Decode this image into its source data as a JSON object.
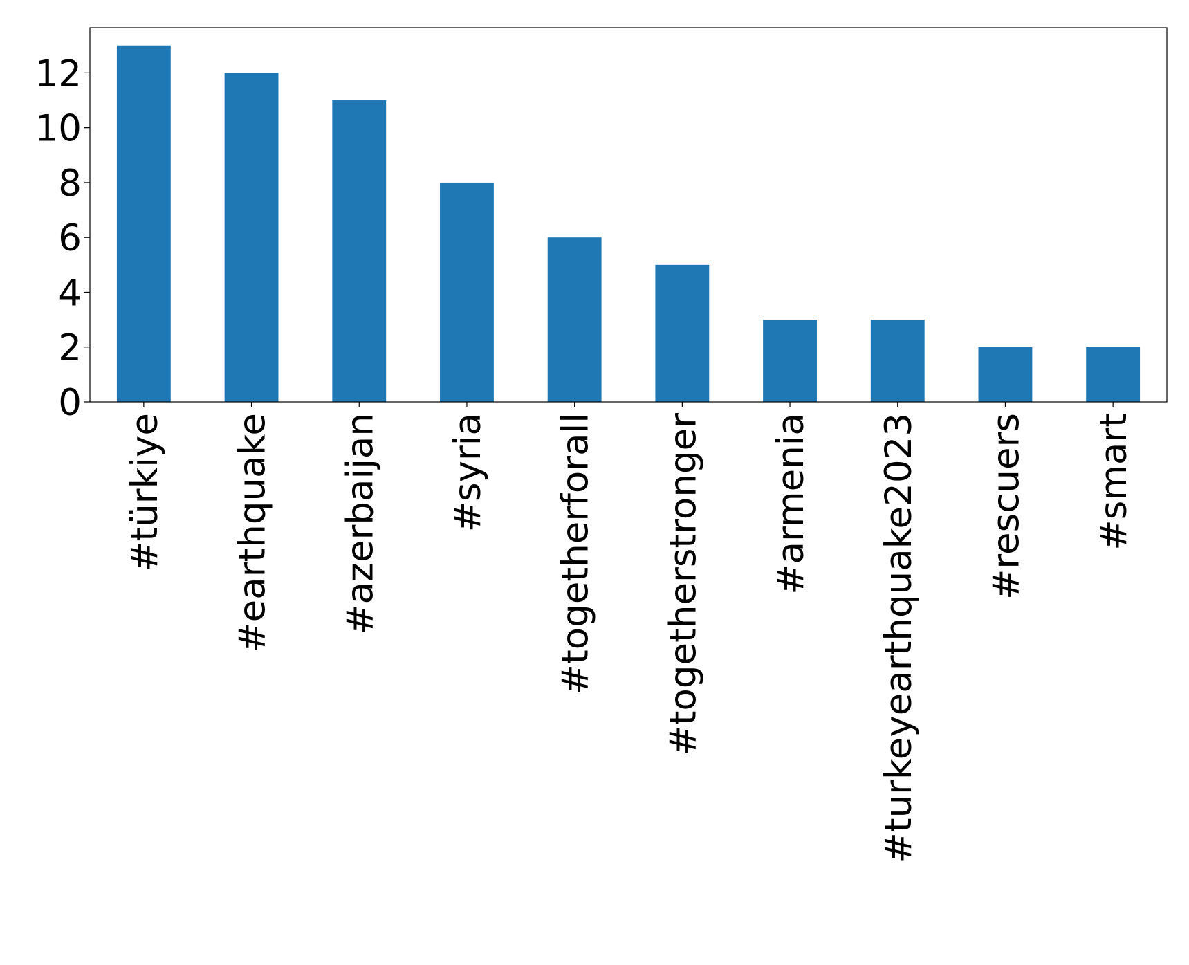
{
  "chart_data": {
    "type": "bar",
    "categories": [
      "#türkiye",
      "#earthquake",
      "#azerbaijan",
      "#syria",
      "#togetherforall",
      "#togetherstronger",
      "#armenia",
      "#turkeyearthquake2023",
      "#rescuers",
      "#smart"
    ],
    "values": [
      13,
      12,
      11,
      8,
      6,
      5,
      3,
      3,
      2,
      2
    ],
    "color": "#1f77b4",
    "ylim": [
      0,
      13.65
    ],
    "yticks": [
      0,
      2,
      4,
      6,
      8,
      10,
      12
    ],
    "grid": false
  }
}
